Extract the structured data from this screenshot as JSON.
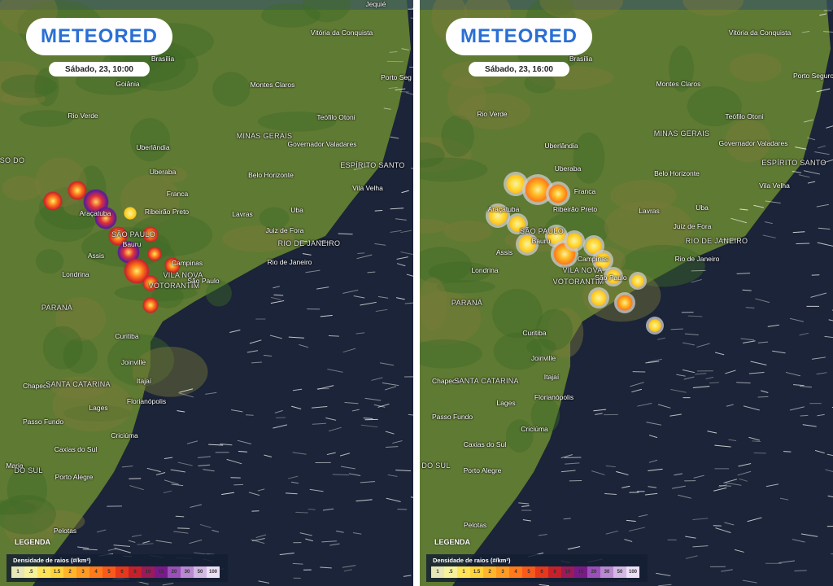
{
  "panels": [
    {
      "logo": "METEORED",
      "timestamp": "Sábado, 23, 10:00",
      "places": [
        "Jequié",
        "Vitória da Conquista",
        "Brasília",
        "Porto Seg",
        "Goiânia",
        "Montes Claros",
        "Rio Verde",
        "Teófilo Otoni",
        "MINAS GERAIS",
        "Governador Valadares",
        "Uberlândia",
        "SO DO",
        "ESPÍRITO SANTO",
        "Uberaba",
        "Belo Horizonte",
        "Franca",
        "Vila Velha",
        "Uba",
        "Araçatuba",
        "Ribeirão Preto",
        "Lavras",
        "SÃO PAULO",
        "Juiz de Fora",
        "RIO DE JANEIRO",
        "Bauru",
        "Assis",
        "Rio de Janeiro",
        "Campinas",
        "Londrina",
        "VILA NOVA",
        "VOTORANTIM",
        "São Paulo",
        "PARANÁ",
        "Curitiba",
        "Joinville",
        "Chapecó",
        "SANTA CATARINA",
        "Itajaí",
        "Lages",
        "Florianópolis",
        "Passo Fundo",
        "Criciúma",
        "Caxias do Sul",
        "Maria",
        "DO SUL",
        "Porto Alegre",
        "Pelotas"
      ],
      "legend": {
        "title": "LEGENDA",
        "subtitle": "Densidade de raios (#/km²)",
        "scale": [
          "1",
          ".5",
          "1",
          "1.5",
          "2",
          "3",
          "4",
          "5",
          "6",
          "8",
          "10",
          "15",
          "20",
          "30",
          "50",
          "100"
        ]
      }
    },
    {
      "logo": "METEORED",
      "timestamp": "Sábado, 23, 16:00",
      "places": [
        "Vitória da Conquista",
        "Brasília",
        "Porto Seguro",
        "Montes Claros",
        "Rio Verde",
        "Teófilo Otoni",
        "MINAS GERAIS",
        "Governador Valadares",
        "Uberlândia",
        "ESPÍRITO SANTO",
        "Uberaba",
        "Belo Horizonte",
        "Franca",
        "Vila Velha",
        "Uba",
        "Araçatuba",
        "Ribeirão Preto",
        "Lavras",
        "SÃO PAULO",
        "Juiz de Fora",
        "RIO DE JANEIRO",
        "Bauru",
        "Assis",
        "Rio de Janeiro",
        "Campinas",
        "Londrina",
        "VILA NOVA",
        "VOTORANTIM",
        "São Paulo",
        "PARANÁ",
        "Curitiba",
        "Joinville",
        "Chapecó",
        "SANTA CATARINA",
        "Itajaí",
        "Lages",
        "Florianópolis",
        "Passo Fundo",
        "Criciúma",
        "Caxias do Sul",
        "DO SUL",
        "Porto Alegre",
        "Pelotas"
      ],
      "legend": {
        "title": "LEGENDA",
        "subtitle": "Densidade de raios (#/km²)",
        "scale": [
          "1",
          ".5",
          "1",
          "1.5",
          "2",
          "3",
          "4",
          "5",
          "6",
          "8",
          "10",
          "15",
          "20",
          "30",
          "50",
          "100"
        ]
      }
    }
  ]
}
